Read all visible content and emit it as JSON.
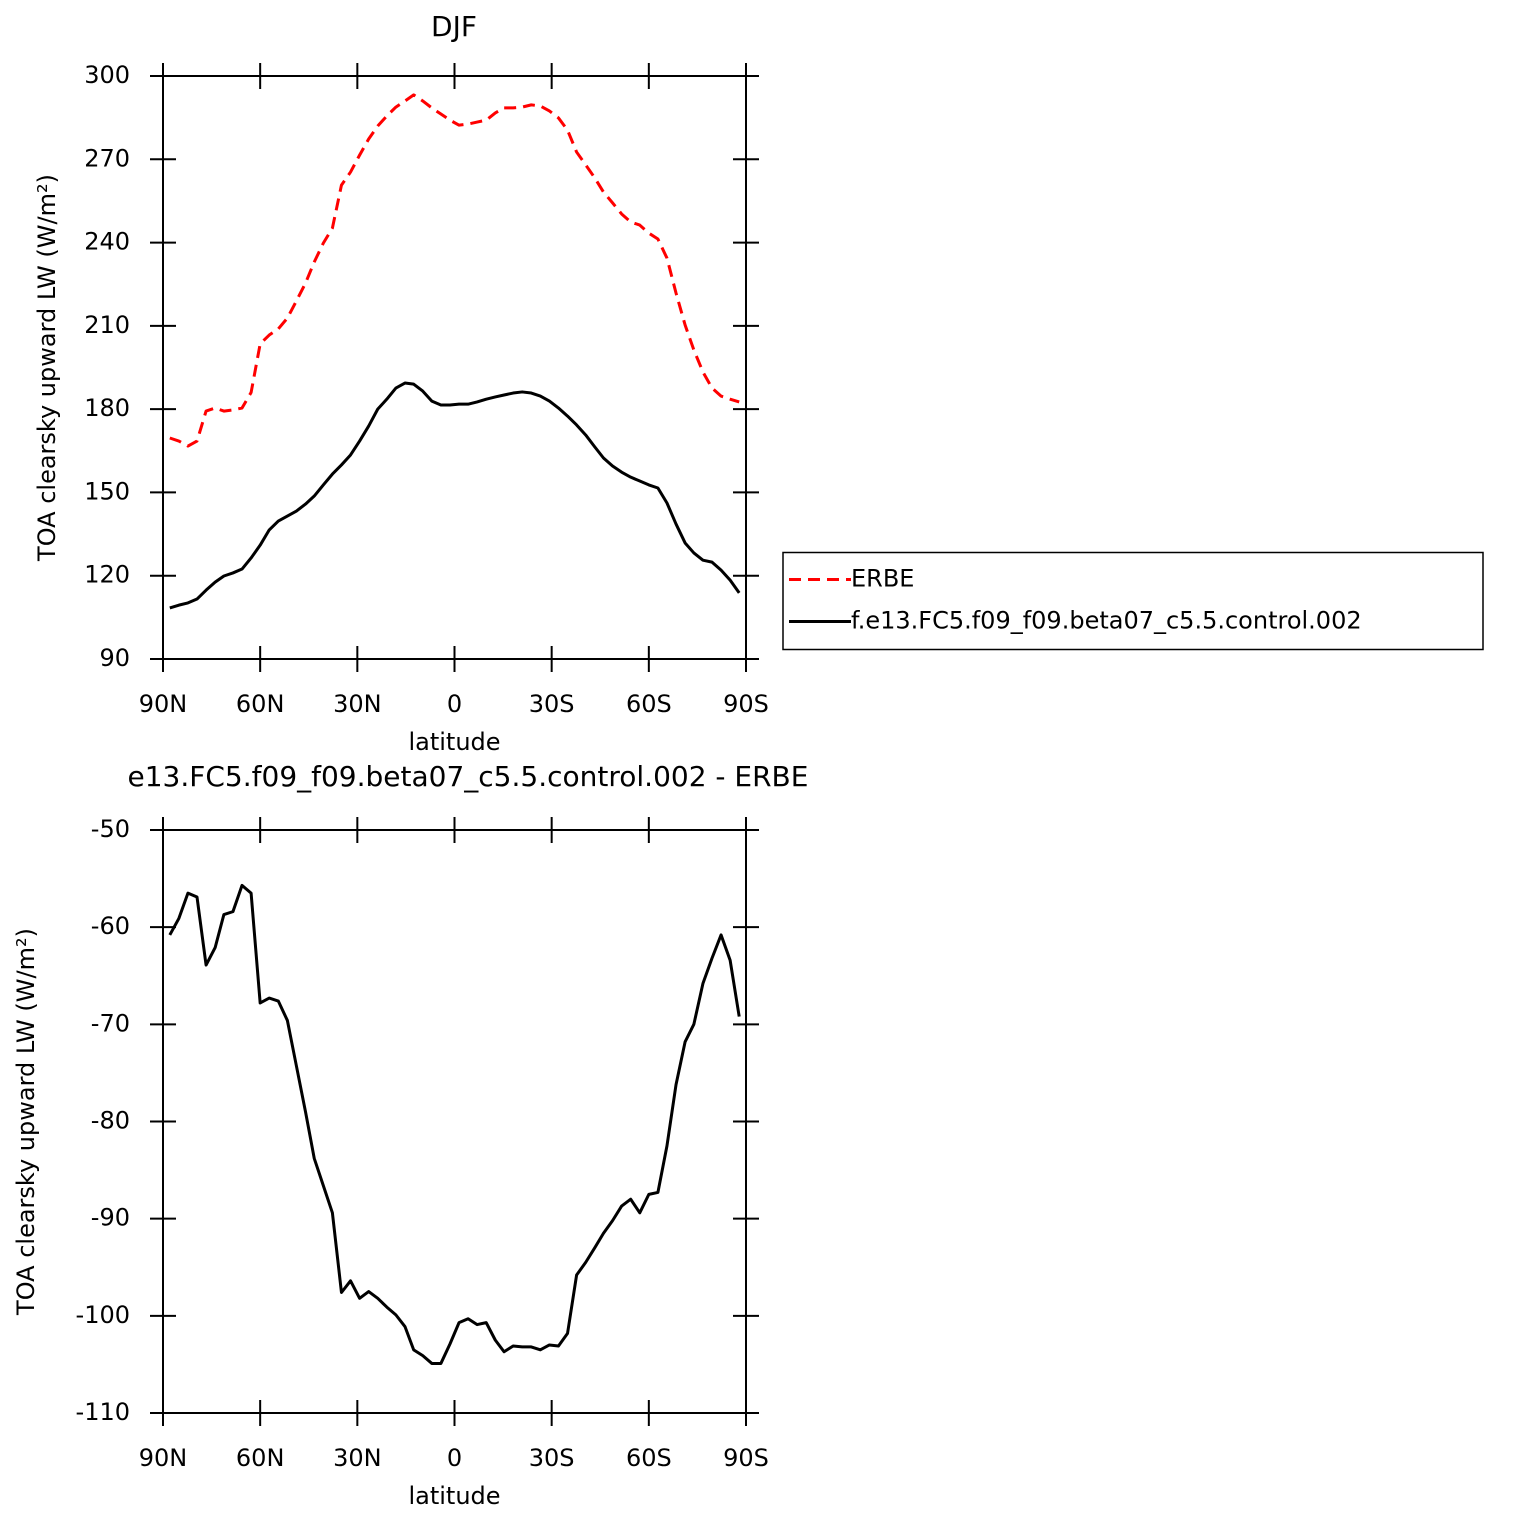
{
  "chart_data": [
    {
      "type": "line",
      "title": "DJF",
      "xlabel": "latitude",
      "ylabel": "TOA clearsky upward LW (W/m²)",
      "x": [
        87.9,
        85.1,
        82.3,
        79.5,
        76.7,
        73.9,
        71.2,
        68.4,
        65.6,
        62.8,
        60.0,
        57.2,
        54.4,
        51.6,
        48.8,
        46.0,
        43.3,
        40.5,
        37.7,
        34.9,
        32.1,
        29.3,
        26.5,
        23.7,
        20.9,
        18.1,
        15.3,
        12.6,
        9.8,
        7.0,
        4.2,
        1.4,
        -1.4,
        -4.2,
        -7.0,
        -9.8,
        -12.6,
        -15.3,
        -18.1,
        -20.9,
        -23.7,
        -26.5,
        -29.3,
        -32.1,
        -34.9,
        -37.7,
        -40.5,
        -43.3,
        -46.0,
        -48.8,
        -51.6,
        -54.4,
        -57.2,
        -60.0,
        -62.8,
        -65.6,
        -68.4,
        -71.2,
        -73.9,
        -76.7,
        -79.5,
        -82.3,
        -85.1,
        -87.9
      ],
      "series": [
        {
          "name": "ERBE",
          "color": "#ff0000",
          "line_style": "dashed",
          "values": [
            169.6,
            168.5,
            166.7,
            168.5,
            179.3,
            180.4,
            179.3,
            179.7,
            180.4,
            186,
            203.5,
            206.7,
            208.9,
            212.8,
            219,
            225.4,
            233,
            239.8,
            245.2,
            260.7,
            265.4,
            271.5,
            277.3,
            282,
            285.6,
            288.8,
            291,
            293.2,
            291,
            288.5,
            286.3,
            284.1,
            282.3,
            282.7,
            283.4,
            284.1,
            286.7,
            288.5,
            288.5,
            288.8,
            289.6,
            289.2,
            287.4,
            284.9,
            280.5,
            272.6,
            268,
            263.3,
            258.2,
            254.3,
            250.3,
            247.4,
            246.3,
            243.4,
            241.3,
            234.4,
            221.8,
            210.3,
            201.3,
            193.4,
            187.6,
            184.7,
            183.6,
            182.6
          ]
        },
        {
          "name": "f.e13.FC5.f09_f09.beta07_c5.5.control.002",
          "color": "#000000",
          "line_style": "solid",
          "values": [
            108.4,
            109.4,
            110.2,
            111.6,
            114.8,
            117.7,
            119.9,
            121,
            122.4,
            126.4,
            131,
            136.5,
            139.7,
            141.5,
            143.3,
            145.8,
            148.7,
            152.7,
            156.6,
            159.9,
            163.5,
            168.5,
            173.9,
            180,
            183.6,
            187.6,
            189.4,
            189,
            186.5,
            182.9,
            181.5,
            181.5,
            181.8,
            181.8,
            182.6,
            183.6,
            184.4,
            185.1,
            185.8,
            186.2,
            185.8,
            184.7,
            182.9,
            180.4,
            177.5,
            174.3,
            170.7,
            166.4,
            162.4,
            159.5,
            157.3,
            155.5,
            154.1,
            152.7,
            151.6,
            146.2,
            138.6,
            131.8,
            128.2,
            125.6,
            124.9,
            122,
            118.4,
            113.8
          ]
        }
      ],
      "xlim": [
        90,
        -90
      ],
      "xticks": [
        {
          "value": 90,
          "label": "90N"
        },
        {
          "value": 60,
          "label": "60N"
        },
        {
          "value": 30,
          "label": "30N"
        },
        0,
        {
          "value": -30,
          "label": "30S"
        },
        {
          "value": -60,
          "label": "60S"
        },
        {
          "value": -90,
          "label": "90S"
        }
      ],
      "ylim": [
        90,
        300
      ],
      "yticks": [
        90,
        120,
        150,
        180,
        210,
        240,
        270,
        300
      ],
      "legend": "right"
    },
    {
      "type": "line",
      "title": "e13.FC5.f09_f09.beta07_c5.5.control.002 - ERBE",
      "xlabel": "latitude",
      "ylabel": "TOA clearsky upward LW (W/m²)",
      "x": [
        87.9,
        85.1,
        82.3,
        79.5,
        76.7,
        73.9,
        71.2,
        68.4,
        65.6,
        62.8,
        60.0,
        57.2,
        54.4,
        51.6,
        48.8,
        46.0,
        43.3,
        40.5,
        37.7,
        34.9,
        32.1,
        29.3,
        26.5,
        23.7,
        20.9,
        18.1,
        15.3,
        12.6,
        9.8,
        7.0,
        4.2,
        1.4,
        -1.4,
        -4.2,
        -7.0,
        -9.8,
        -12.6,
        -15.3,
        -18.1,
        -20.9,
        -23.7,
        -26.5,
        -29.3,
        -32.1,
        -34.9,
        -37.7,
        -40.5,
        -43.3,
        -46.0,
        -48.8,
        -51.6,
        -54.4,
        -57.2,
        -60.0,
        -62.8,
        -65.6,
        -68.4,
        -71.2,
        -73.9,
        -76.7,
        -79.5,
        -82.3,
        -85.1,
        -87.9
      ],
      "values": [
        -60.8,
        -59.1,
        -56.5,
        -56.9,
        -63.9,
        -62.1,
        -58.7,
        -58.4,
        -55.7,
        -56.5,
        -67.8,
        -67.3,
        -67.6,
        -69.6,
        -74.3,
        -79,
        -83.8,
        -86.6,
        -89.4,
        -97.6,
        -96.4,
        -98.2,
        -97.5,
        -98.2,
        -99.1,
        -99.9,
        -101.1,
        -103.5,
        -104.1,
        -104.9,
        -104.9,
        -102.9,
        -100.7,
        -100.3,
        -100.9,
        -100.7,
        -102.5,
        -103.7,
        -103.1,
        -103.2,
        -103.2,
        -103.5,
        -103,
        -103.1,
        -101.8,
        -95.8,
        -94.5,
        -93,
        -91.5,
        -90.2,
        -88.7,
        -88,
        -89.4,
        -87.5,
        -87.3,
        -82.5,
        -76.2,
        -71.8,
        -70,
        -65.8,
        -63.2,
        -60.8,
        -63.4,
        -69.2
      ],
      "color": "#000000",
      "xlim": [
        90,
        -90
      ],
      "xticks": [
        {
          "value": 90,
          "label": "90N"
        },
        {
          "value": 60,
          "label": "60N"
        },
        {
          "value": 30,
          "label": "30N"
        },
        0,
        {
          "value": -30,
          "label": "30S"
        },
        {
          "value": -60,
          "label": "60S"
        },
        {
          "value": -90,
          "label": "90S"
        }
      ],
      "ylim": [
        -110,
        -50
      ],
      "yticks": [
        -110,
        -100,
        -90,
        -80,
        -70,
        -60,
        -50
      ]
    }
  ]
}
